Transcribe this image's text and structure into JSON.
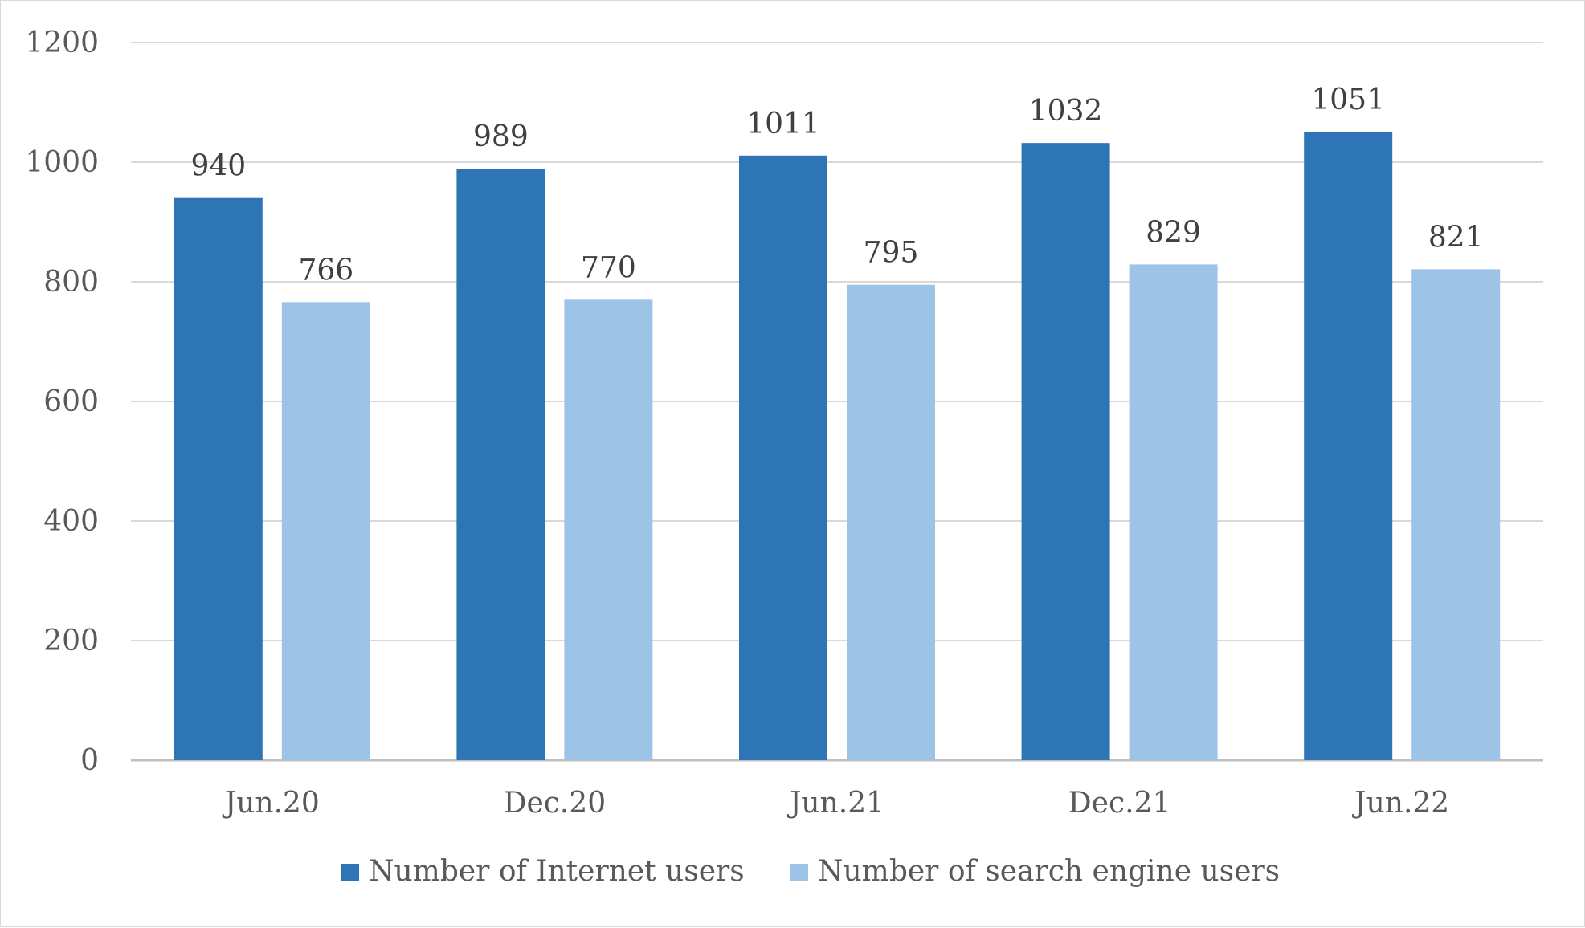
{
  "chart_data": {
    "type": "bar",
    "categories": [
      "Jun.20",
      "Dec.20",
      "Jun.21",
      "Dec.21",
      "Jun.22"
    ],
    "series": [
      {
        "name": "Number of Internet users",
        "values": [
          940,
          989,
          1011,
          1032,
          1051
        ],
        "color": "#2e75b6"
      },
      {
        "name": "Number of search engine users",
        "values": [
          766,
          770,
          795,
          829,
          821
        ],
        "color": "#9dc3e6"
      }
    ],
    "ylim": [
      0,
      1200
    ],
    "yticks": [
      0,
      200,
      400,
      600,
      800,
      1000,
      1200
    ],
    "grid": true,
    "legend": "bottom",
    "data_labels": true
  }
}
